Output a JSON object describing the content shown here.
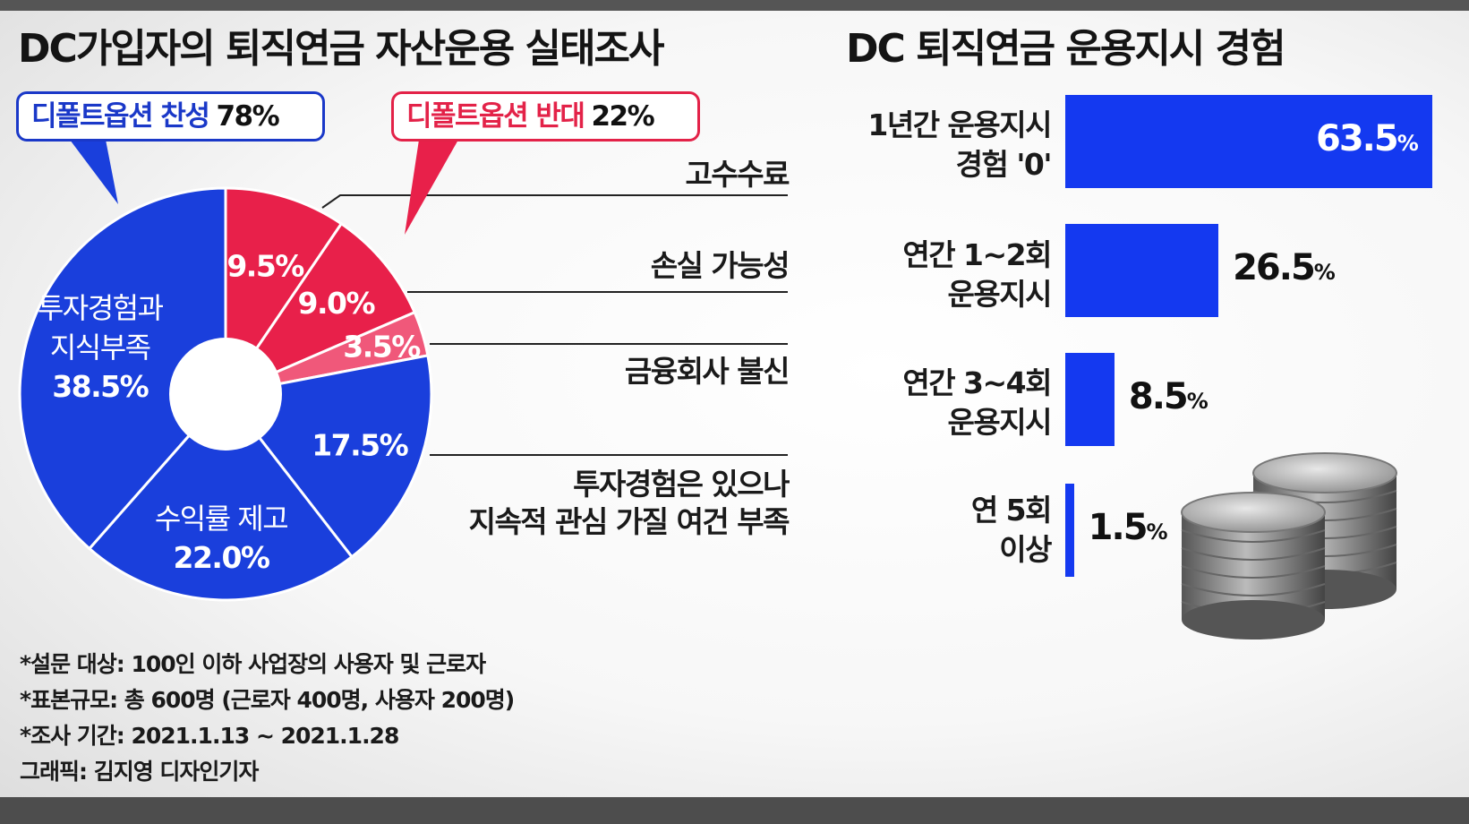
{
  "titles": {
    "left": "DC가입자의 퇴직연금 자산운용 실태조사",
    "right": "DC 퇴직연금 운용지시 경험"
  },
  "callouts": {
    "agree": {
      "label": "디폴트옵션 찬성",
      "value": "78%"
    },
    "oppose": {
      "label": "디폴트옵션 반대",
      "value": "22%"
    }
  },
  "reasons": {
    "r1": "고수수료",
    "r2": "손실 가능성",
    "r3": "금융회사 불신",
    "r4_line1": "투자경험은 있으나",
    "r4_line2": "지속적 관심 가질 여건 부족"
  },
  "notes": [
    "*설문 대상: 100인 이하 사업장의 사용자 및 근로자",
    "*표본규모: 총 600명 (근로자 400명, 사용자 200명)",
    "*조사 기간: 2021.1.13 ~ 2021.1.28",
    "그래픽: 김지영 디자인기자"
  ],
  "colors": {
    "blue": "#1a3fdc",
    "red": "#e8204a",
    "pink": "#f0587a",
    "bar": "#1439f0"
  },
  "chart_data": [
    {
      "type": "pie",
      "title": "DC가입자의 퇴직연금 자산운용 실태조사",
      "donut": true,
      "slices": [
        {
          "label": "",
          "value": 9.5,
          "display": "9.5%",
          "group": "디폴트옵션 반대",
          "color": "#e8204a"
        },
        {
          "label": "",
          "value": 9.0,
          "display": "9.0%",
          "group": "디폴트옵션 반대",
          "color": "#e8204a"
        },
        {
          "label": "",
          "value": 3.5,
          "display": "3.5%",
          "group": "디폴트옵션 반대",
          "color": "#f0587a"
        },
        {
          "label": "",
          "value": 17.5,
          "display": "17.5%",
          "group": "디폴트옵션 찬성",
          "color": "#1a3fdc"
        },
        {
          "label_lines": [
            "수익률 제고"
          ],
          "value": 22.0,
          "display": "22.0%",
          "group": "디폴트옵션 찬성",
          "color": "#1a3fdc"
        },
        {
          "label_lines": [
            "투자경험과",
            "지식부족"
          ],
          "value": 38.5,
          "display": "38.5%",
          "group": "디폴트옵션 찬성",
          "color": "#1a3fdc"
        }
      ]
    },
    {
      "type": "bar",
      "orientation": "horizontal",
      "title": "DC 퇴직연금 운용지시 경험",
      "categories": [
        [
          "1년간 운용지시",
          "경험 '0'"
        ],
        [
          "연간 1~2회",
          "운용지시"
        ],
        [
          "연간 3~4회",
          "운용지시"
        ],
        [
          "연 5회",
          "이상"
        ]
      ],
      "values": [
        63.5,
        26.5,
        8.5,
        1.5
      ],
      "value_labels": [
        "63.5",
        "26.5",
        "8.5",
        "1.5"
      ],
      "unit": "%",
      "color": "#1439f0"
    }
  ]
}
